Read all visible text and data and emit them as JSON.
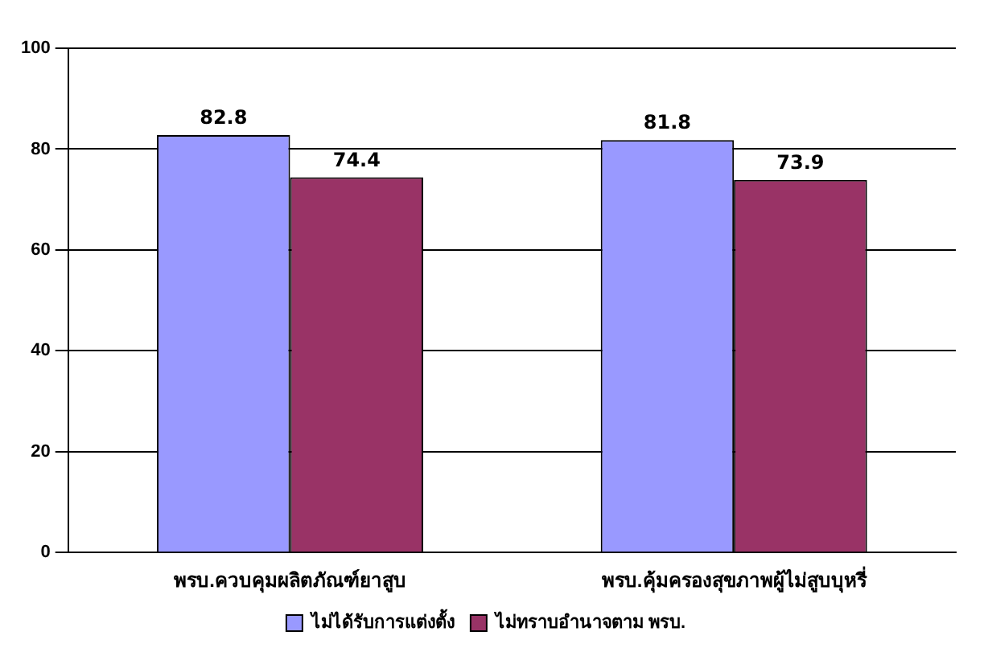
{
  "chart_data": {
    "type": "bar",
    "categories": [
      "พรบ.ควบคุมผลิตภัณฑ์ยาสูบ",
      "พรบ.คุ้มครองสุขภาพผู้ไม่สูบบุหรี่"
    ],
    "series": [
      {
        "name": "ไม่ได้รับการแต่งตั้ง",
        "color": "#9999ff",
        "values": [
          82.8,
          81.8
        ]
      },
      {
        "name": "ไม่ทราบอำนาจตาม พรบ.",
        "color": "#993366",
        "values": [
          74.4,
          73.9
        ]
      }
    ],
    "ylim": [
      0,
      100
    ],
    "yticks": [
      0,
      20,
      40,
      60,
      80,
      100
    ],
    "grid": "y",
    "legend": "bottom",
    "data_labels": true
  }
}
